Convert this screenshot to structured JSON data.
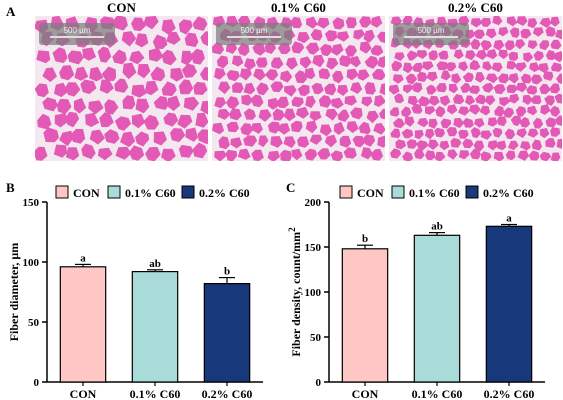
{
  "figure": {
    "panel_a_label": "A",
    "micrographs": [
      {
        "title": "CON",
        "scale_label": "500 µm"
      },
      {
        "title": "0.1% C60",
        "scale_label": "500 µm"
      },
      {
        "title": "0.2% C60",
        "scale_label": "500 µm"
      }
    ]
  },
  "colors": {
    "CON": "#ffc7c3",
    "0.1% C60": "#a9dcd8",
    "0.2% C60": "#17387a",
    "tissue": "#e25ab6",
    "gap": "#f4e8f0"
  },
  "chart_data": [
    {
      "panel_label": "B",
      "type": "bar",
      "categories": [
        "CON",
        "0.1% C60",
        "0.2% C60"
      ],
      "values": [
        96,
        92,
        82
      ],
      "errors": [
        2,
        1.5,
        5
      ],
      "significance": [
        "a",
        "ab",
        "b"
      ],
      "legend": [
        "CON",
        "0.1% C60",
        "0.2% C60"
      ],
      "legend_position": "top",
      "ylabel": "Fiber diameter, µm",
      "ylim": [
        0,
        150
      ],
      "yticks": [
        0,
        50,
        100,
        150
      ]
    },
    {
      "panel_label": "C",
      "type": "bar",
      "categories": [
        "CON",
        "0.1% C60",
        "0.2% C60"
      ],
      "values": [
        148,
        163,
        173
      ],
      "errors": [
        4,
        3,
        2
      ],
      "significance": [
        "b",
        "ab",
        "a"
      ],
      "legend": [
        "CON",
        "0.1% C60",
        "0.2% C60"
      ],
      "legend_position": "top",
      "ylabel": "Fiber density, count/mm",
      "ylabel_superscript": "2",
      "ylim": [
        0,
        200
      ],
      "yticks": [
        0,
        50,
        100,
        150,
        200
      ]
    }
  ]
}
